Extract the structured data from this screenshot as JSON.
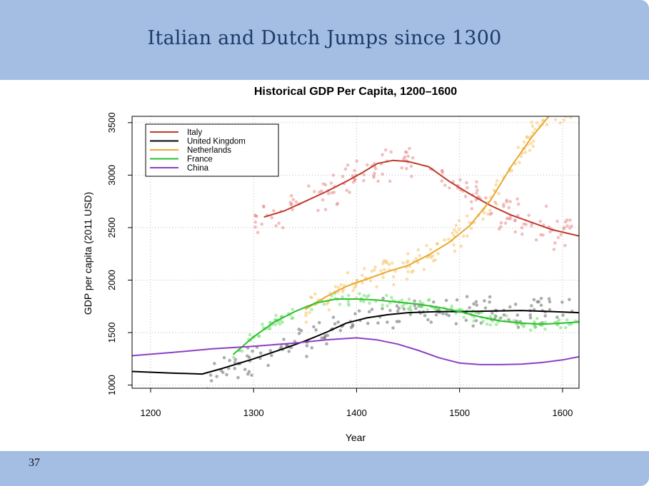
{
  "slide": {
    "title": "Italian and Dutch Jumps since 1300",
    "page_number": "37",
    "banner_color": "#a3bde3"
  },
  "chart_data": {
    "type": "line",
    "title": "Historical GDP Per Capita, 1200–1600",
    "xlabel": "Year",
    "ylabel": "GDP per capita (2011 USD)",
    "xlim": [
      1182,
      1616
    ],
    "ylim": [
      970,
      3560
    ],
    "xticks": [
      1200,
      1300,
      1400,
      1500,
      1600
    ],
    "yticks": [
      1000,
      1500,
      2000,
      2500,
      3000,
      3500
    ],
    "grid": true,
    "legend_position": "top-left",
    "series": [
      {
        "name": "Italy",
        "color": "#c0392b",
        "points": [
          [
            1310,
            2600
          ],
          [
            1330,
            2660
          ],
          [
            1350,
            2750
          ],
          [
            1370,
            2840
          ],
          [
            1390,
            2940
          ],
          [
            1405,
            3020
          ],
          [
            1420,
            3110
          ],
          [
            1435,
            3140
          ],
          [
            1450,
            3130
          ],
          [
            1470,
            3080
          ],
          [
            1490,
            2940
          ],
          [
            1510,
            2820
          ],
          [
            1530,
            2710
          ],
          [
            1550,
            2620
          ],
          [
            1570,
            2550
          ],
          [
            1590,
            2480
          ],
          [
            1616,
            2420
          ]
        ]
      },
      {
        "name": "United Kingdom",
        "color": "#000000",
        "points": [
          [
            1182,
            1130
          ],
          [
            1220,
            1115
          ],
          [
            1250,
            1105
          ],
          [
            1270,
            1160
          ],
          [
            1300,
            1250
          ],
          [
            1330,
            1350
          ],
          [
            1350,
            1420
          ],
          [
            1370,
            1500
          ],
          [
            1390,
            1590
          ],
          [
            1410,
            1640
          ],
          [
            1430,
            1670
          ],
          [
            1450,
            1690
          ],
          [
            1480,
            1700
          ],
          [
            1500,
            1700
          ],
          [
            1530,
            1705
          ],
          [
            1560,
            1710
          ],
          [
            1590,
            1700
          ],
          [
            1616,
            1690
          ]
        ]
      },
      {
        "name": "Netherlands",
        "color": "#e8a82c",
        "points": [
          [
            1350,
            1720
          ],
          [
            1370,
            1840
          ],
          [
            1390,
            1940
          ],
          [
            1410,
            2010
          ],
          [
            1430,
            2080
          ],
          [
            1450,
            2140
          ],
          [
            1470,
            2240
          ],
          [
            1490,
            2360
          ],
          [
            1510,
            2520
          ],
          [
            1530,
            2760
          ],
          [
            1550,
            3080
          ],
          [
            1570,
            3360
          ],
          [
            1590,
            3600
          ]
        ]
      },
      {
        "name": "France",
        "color": "#2cbf2c",
        "points": [
          [
            1280,
            1290
          ],
          [
            1300,
            1460
          ],
          [
            1320,
            1600
          ],
          [
            1340,
            1700
          ],
          [
            1360,
            1780
          ],
          [
            1380,
            1820
          ],
          [
            1400,
            1820
          ],
          [
            1420,
            1810
          ],
          [
            1440,
            1790
          ],
          [
            1460,
            1770
          ],
          [
            1480,
            1740
          ],
          [
            1500,
            1700
          ],
          [
            1520,
            1650
          ],
          [
            1540,
            1610
          ],
          [
            1560,
            1590
          ],
          [
            1580,
            1580
          ],
          [
            1600,
            1590
          ],
          [
            1616,
            1600
          ]
        ]
      },
      {
        "name": "China",
        "color": "#8e3fc3",
        "points": [
          [
            1182,
            1280
          ],
          [
            1220,
            1310
          ],
          [
            1260,
            1345
          ],
          [
            1300,
            1370
          ],
          [
            1340,
            1400
          ],
          [
            1370,
            1430
          ],
          [
            1400,
            1450
          ],
          [
            1420,
            1430
          ],
          [
            1440,
            1390
          ],
          [
            1460,
            1330
          ],
          [
            1480,
            1260
          ],
          [
            1500,
            1210
          ],
          [
            1520,
            1195
          ],
          [
            1540,
            1195
          ],
          [
            1560,
            1200
          ],
          [
            1580,
            1215
          ],
          [
            1600,
            1240
          ],
          [
            1616,
            1270
          ]
        ]
      }
    ],
    "scatter_clouds": [
      {
        "series": "Italy",
        "color": "#e88a8a",
        "x": [
          1300,
          1610
        ],
        "y_offset_spread": 220
      },
      {
        "series": "United Kingdom",
        "color": "#6a6a6a",
        "x": [
          1255,
          1610
        ],
        "y_offset_spread": 170
      },
      {
        "series": "Netherlands",
        "color": "#f5c56b",
        "x": [
          1350,
          1616
        ],
        "y_offset_spread": 160
      },
      {
        "series": "France",
        "color": "#6fe06f",
        "x": [
          1280,
          1616
        ],
        "y_offset_spread": 70
      }
    ]
  }
}
